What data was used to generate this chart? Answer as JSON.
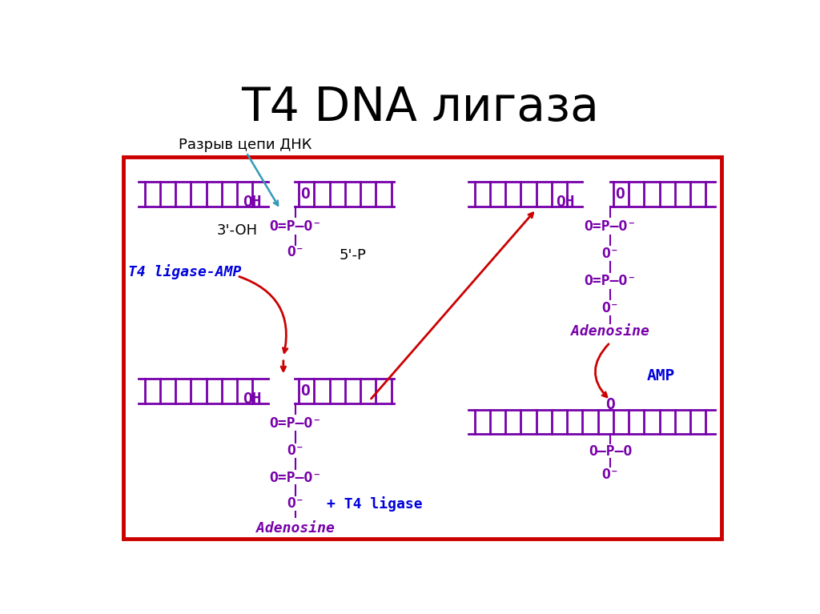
{
  "title": "T4 DNA лигаза",
  "title_fontsize": 42,
  "title_color": "#000000",
  "bg_color": "#ffffff",
  "border_color": "#cc0000",
  "dna_color": "#7700aa",
  "chem_color": "#7700aa",
  "arrow_color": "#cc0000",
  "blue_arrow_color": "#3399bb",
  "label_color": "#000000",
  "blue_label_color": "#0000dd",
  "annotation_label": "Разрыв цепи ДНК",
  "t4_label": "T4 ligase-AMP",
  "t4_ligase_label": "+ T4 ligase",
  "amp_label": "AMP",
  "adenosine_label": "Adenosine",
  "three_oh_label": "3'-OH",
  "five_p_label": "5'-P"
}
